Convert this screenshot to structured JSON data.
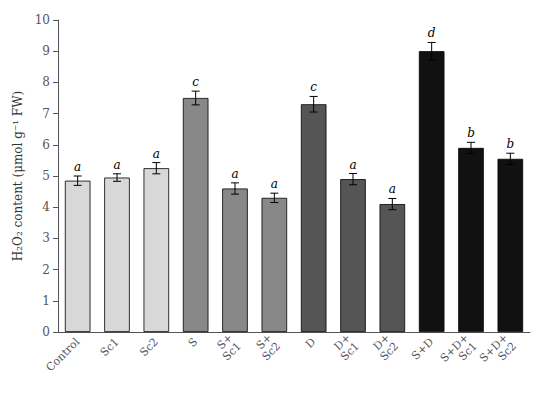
{
  "chart_data": {
    "type": "bar",
    "categories": [
      "Control",
      "Sc1",
      "Sc2",
      "S",
      "S+\nSc1",
      "S+\nSc2",
      "D",
      "D+\nSc1",
      "D+\nSc2",
      "S+D",
      "S+D+\nSc1",
      "S+D+\nSc2"
    ],
    "values": [
      4.85,
      4.95,
      5.25,
      7.5,
      4.6,
      4.3,
      7.3,
      4.9,
      4.1,
      9.0,
      5.9,
      5.55
    ],
    "errors": [
      0.15,
      0.12,
      0.18,
      0.22,
      0.18,
      0.15,
      0.25,
      0.18,
      0.18,
      0.28,
      0.18,
      0.18
    ],
    "annotations": [
      "a",
      "a",
      "a",
      "c",
      "a",
      "a",
      "c",
      "a",
      "a",
      "d",
      "b",
      "b"
    ],
    "colors": [
      "#d8d8d8",
      "#d8d8d8",
      "#d8d8d8",
      "#888888",
      "#888888",
      "#888888",
      "#555555",
      "#555555",
      "#555555",
      "#111111",
      "#111111",
      "#111111"
    ],
    "ylabel": "H₂O₂ content (μmol g⁻¹ FW)",
    "ylim": [
      0,
      10
    ],
    "yticks": [
      0,
      1,
      2,
      3,
      4,
      5,
      6,
      7,
      8,
      9,
      10
    ],
    "grid": false
  }
}
